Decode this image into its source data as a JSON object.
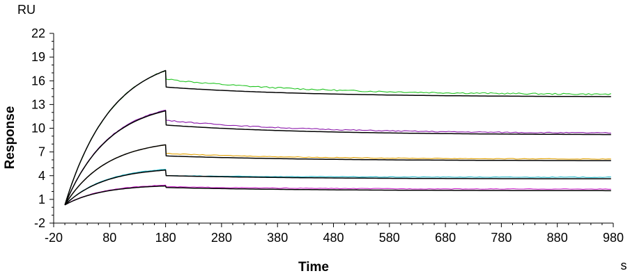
{
  "chart_data": {
    "type": "line",
    "xlabel": "Time",
    "ylabel": "Response",
    "x_unit": "s",
    "y_unit": "RU",
    "xlim": [
      -20,
      980
    ],
    "ylim": [
      -2,
      22
    ],
    "x_ticks": [
      "-20",
      "80",
      "180",
      "280",
      "380",
      "480",
      "580",
      "680",
      "780",
      "880",
      "980"
    ],
    "y_ticks": [
      "-2",
      "1",
      "4",
      "7",
      "10",
      "13",
      "16",
      "19",
      "22"
    ],
    "grid": false,
    "legend": "none",
    "phases": {
      "injection_start": 0,
      "dissociation_start": 180,
      "end": 980
    },
    "series": [
      {
        "role": "measured",
        "color": "#22c522",
        "peak": 17.3,
        "dip_after_peak": 16.2,
        "end_value": 14.3
      },
      {
        "role": "measured",
        "color": "#8a16aa",
        "peak": 12.3,
        "dip_after_peak": 11.0,
        "end_value": 9.4
      },
      {
        "role": "measured",
        "color": "#e2a100",
        "peak": 7.9,
        "dip_after_peak": 6.8,
        "end_value": 6.1
      },
      {
        "role": "measured",
        "color": "#20b6c8",
        "peak": 4.8,
        "dip_after_peak": 4.0,
        "end_value": 3.8
      },
      {
        "role": "measured",
        "color": "#cc22cc",
        "peak": 2.8,
        "dip_after_peak": 2.6,
        "end_value": 2.3
      },
      {
        "role": "fit",
        "color": "#000000",
        "peak": 17.3,
        "dip_after_peak": 15.2,
        "end_value": 14.0
      },
      {
        "role": "fit",
        "color": "#000000",
        "peak": 12.2,
        "dip_after_peak": 10.4,
        "end_value": 9.2
      },
      {
        "role": "fit",
        "color": "#000000",
        "peak": 7.9,
        "dip_after_peak": 6.5,
        "end_value": 5.9
      },
      {
        "role": "fit",
        "color": "#000000",
        "peak": 4.7,
        "dip_after_peak": 4.0,
        "end_value": 3.6
      },
      {
        "role": "fit",
        "color": "#000000",
        "peak": 2.7,
        "dip_after_peak": 2.5,
        "end_value": 2.1
      }
    ]
  }
}
